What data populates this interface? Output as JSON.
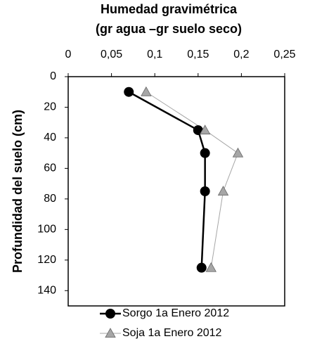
{
  "chart_data": {
    "type": "line",
    "title": "Humedad gravimétrica",
    "subtitle": "(gr agua –gr suelo seco)",
    "y_label": "Profundidad del suelo (cm)",
    "xlim": [
      0,
      0.25
    ],
    "xticks": [
      0,
      {
        "value": 0.05,
        "label": "0,05"
      },
      {
        "value": 0.1,
        "label": "0,1"
      },
      {
        "value": 0.15,
        "label": "0,15"
      },
      {
        "value": 0.2,
        "label": "0,2"
      },
      {
        "value": 0.25,
        "label": "0,25"
      }
    ],
    "ylim": [
      0,
      150
    ],
    "yticks": [
      0,
      20,
      40,
      60,
      80,
      100,
      120,
      140
    ],
    "y_inverted": true,
    "x_axis_position": "top",
    "grid": false,
    "legend_position": "bottom",
    "series": [
      {
        "name": "Sorgo 1a Enero 2012",
        "color": "#000000",
        "marker": "circle",
        "x": [
          0.07,
          0.15,
          0.158,
          0.158,
          0.154
        ],
        "y": [
          10,
          35,
          50,
          75,
          125
        ]
      },
      {
        "name": "Soja 1a Enero 2012",
        "color": "#a6a6a6",
        "marker": "triangle",
        "x": [
          0.09,
          0.158,
          0.196,
          0.179,
          0.165
        ],
        "y": [
          10,
          35,
          50,
          75,
          125
        ]
      }
    ]
  }
}
